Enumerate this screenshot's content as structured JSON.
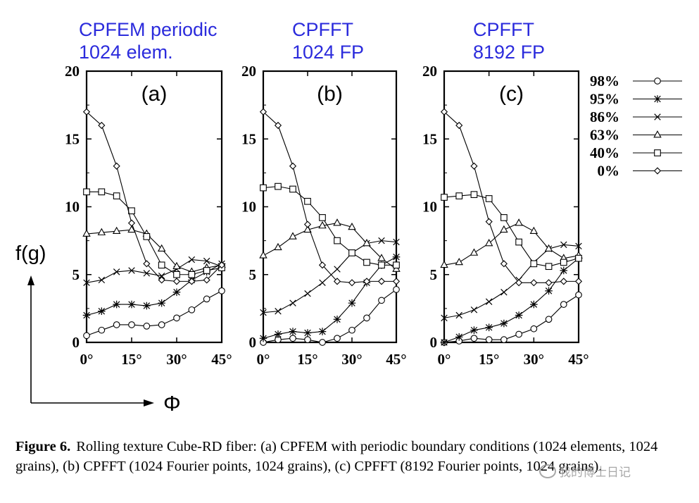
{
  "panel_titles": [
    {
      "line1": "CPFEM periodic",
      "line2": "1024 elem."
    },
    {
      "line1": "CPFFT",
      "line2": "1024 FP"
    },
    {
      "line1": "CPFFT",
      "line2": "8192 FP"
    }
  ],
  "y_axis_label": "f(g)",
  "x_axis_label": "Φ",
  "colors": {
    "title": "#2b2bdc",
    "axis": "#000000",
    "line": "#000000"
  },
  "caption": {
    "figure_label": "Figure 6.",
    "text": "Rolling texture Cube-RD fiber: (a) CPFEM with periodic boundary conditions (1024 elements, 1024 grains), (b) CPFFT (1024 Fourier points, 1024 grains), (c) CPFFT (8192 Fourier points, 1024 grains)."
  },
  "watermark": "我的博士日记",
  "chart_data": [
    {
      "type": "line",
      "panel_label": "(a)",
      "xlabel": "Φ",
      "ylabel": "f(g)",
      "xlim": [
        0,
        45
      ],
      "ylim": [
        0,
        20
      ],
      "x_ticks": [
        "0°",
        "15°",
        "30°",
        "45°"
      ],
      "y_ticks": [
        0,
        5,
        10,
        15,
        20
      ],
      "x": [
        0,
        5,
        10,
        15,
        20,
        25,
        30,
        35,
        40,
        45
      ],
      "series": [
        {
          "name": "98%",
          "marker": "circle",
          "values": [
            0.5,
            0.9,
            1.3,
            1.3,
            1.2,
            1.3,
            1.8,
            2.4,
            3.2,
            3.8
          ]
        },
        {
          "name": "95%",
          "marker": "star",
          "values": [
            2.0,
            2.3,
            2.8,
            2.8,
            2.7,
            2.9,
            3.7,
            4.6,
            5.2,
            5.8
          ]
        },
        {
          "name": "86%",
          "marker": "cross",
          "values": [
            4.4,
            4.6,
            5.2,
            5.3,
            5.1,
            4.9,
            5.4,
            6.1,
            6.0,
            5.6
          ]
        },
        {
          "name": "63%",
          "marker": "triangle",
          "values": [
            8.0,
            8.1,
            8.2,
            8.3,
            8.0,
            6.9,
            5.6,
            5.2,
            5.5,
            5.7
          ]
        },
        {
          "name": "40%",
          "marker": "square",
          "values": [
            11.1,
            11.1,
            10.8,
            9.7,
            7.8,
            5.7,
            5.0,
            5.0,
            5.3,
            5.5
          ]
        },
        {
          "name": "0%",
          "marker": "diamond",
          "values": [
            17.0,
            16.0,
            13.0,
            8.8,
            5.8,
            4.6,
            4.5,
            4.5,
            4.6,
            5.7
          ]
        }
      ]
    },
    {
      "type": "line",
      "panel_label": "(b)",
      "xlabel": "Φ",
      "ylabel": "f(g)",
      "xlim": [
        0,
        45
      ],
      "ylim": [
        0,
        20
      ],
      "x_ticks": [
        "0°",
        "15°",
        "30°",
        "45°"
      ],
      "y_ticks": [
        0,
        5,
        10,
        15,
        20
      ],
      "x": [
        0,
        5,
        10,
        15,
        20,
        25,
        30,
        35,
        40,
        45
      ],
      "series": [
        {
          "name": "98%",
          "marker": "circle",
          "values": [
            0.0,
            0.2,
            0.3,
            0.2,
            0.0,
            0.3,
            0.9,
            1.8,
            3.1,
            3.9
          ]
        },
        {
          "name": "95%",
          "marker": "star",
          "values": [
            0.3,
            0.6,
            0.8,
            0.7,
            0.8,
            1.7,
            2.9,
            4.4,
            5.7,
            6.3
          ]
        },
        {
          "name": "86%",
          "marker": "cross",
          "values": [
            2.2,
            2.3,
            2.9,
            3.6,
            4.4,
            5.4,
            6.6,
            7.3,
            7.5,
            7.4
          ]
        },
        {
          "name": "63%",
          "marker": "triangle",
          "values": [
            6.4,
            7.0,
            7.8,
            8.3,
            8.6,
            8.8,
            8.5,
            7.3,
            6.2,
            5.4
          ]
        },
        {
          "name": "40%",
          "marker": "square",
          "values": [
            11.4,
            11.5,
            11.3,
            10.4,
            9.2,
            7.5,
            6.6,
            5.9,
            5.7,
            5.7
          ]
        },
        {
          "name": "0%",
          "marker": "diamond",
          "values": [
            17.0,
            16.0,
            13.0,
            8.7,
            5.7,
            4.5,
            4.4,
            4.5,
            4.5,
            4.5
          ]
        }
      ]
    },
    {
      "type": "line",
      "panel_label": "(c)",
      "xlabel": "Φ",
      "ylabel": "f(g)",
      "xlim": [
        0,
        45
      ],
      "ylim": [
        0,
        20
      ],
      "x_ticks": [
        "0°",
        "15°",
        "30°",
        "45°"
      ],
      "y_ticks": [
        0,
        5,
        10,
        15,
        20
      ],
      "x": [
        0,
        5,
        10,
        15,
        20,
        25,
        30,
        35,
        40,
        45
      ],
      "series": [
        {
          "name": "98%",
          "marker": "circle",
          "values": [
            0.0,
            0.1,
            0.3,
            0.2,
            0.2,
            0.6,
            1.0,
            1.7,
            2.8,
            3.5
          ]
        },
        {
          "name": "95%",
          "marker": "star",
          "values": [
            0.0,
            0.4,
            0.9,
            1.1,
            1.4,
            2.0,
            2.8,
            3.8,
            5.3,
            6.2
          ]
        },
        {
          "name": "86%",
          "marker": "cross",
          "values": [
            1.8,
            2.0,
            2.4,
            3.0,
            3.7,
            4.6,
            5.9,
            6.9,
            7.2,
            7.1
          ]
        },
        {
          "name": "63%",
          "marker": "triangle",
          "values": [
            5.7,
            5.9,
            6.6,
            7.3,
            8.3,
            8.8,
            8.2,
            6.9,
            6.2,
            6.4
          ]
        },
        {
          "name": "40%",
          "marker": "square",
          "values": [
            10.7,
            10.8,
            10.9,
            10.6,
            9.2,
            7.4,
            5.8,
            5.6,
            5.9,
            6.2
          ]
        },
        {
          "name": "0%",
          "marker": "diamond",
          "values": [
            17.0,
            16.0,
            13.0,
            8.9,
            5.8,
            4.4,
            4.4,
            4.4,
            4.5,
            4.5
          ]
        }
      ]
    }
  ]
}
